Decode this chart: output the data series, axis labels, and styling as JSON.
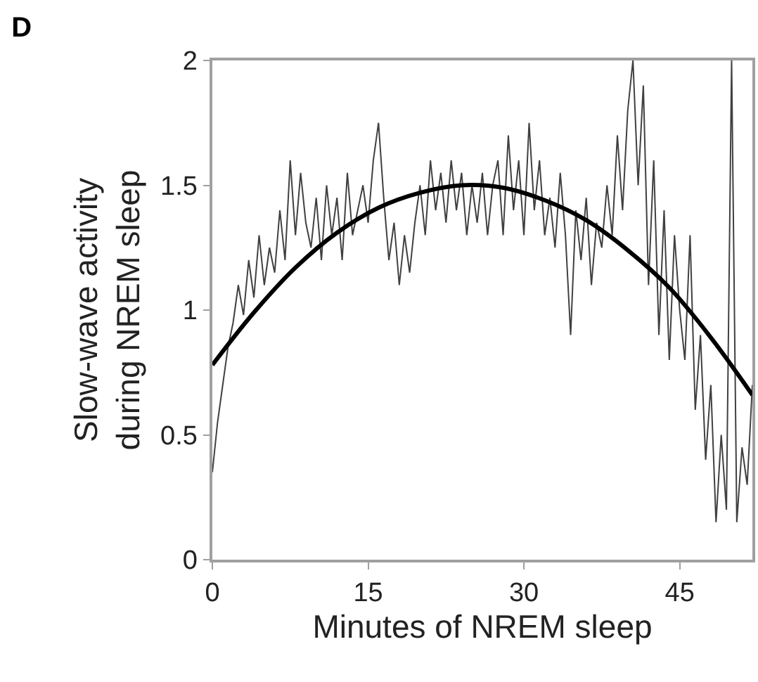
{
  "chart_data": {
    "type": "line",
    "title": "D",
    "xlabel": "Minutes of NREM sleep",
    "ylabel": "Slow-wave activity\nduring NREM sleep",
    "xlim": [
      0,
      52
    ],
    "xticks": [
      0,
      15,
      30,
      45
    ],
    "ylim": [
      0,
      2
    ],
    "yticks": [
      0,
      0.5,
      1,
      1.5,
      2
    ],
    "marker": "none",
    "series": [
      {
        "color": "#404040",
        "x": [
          0,
          0.5,
          1,
          1.5,
          2,
          2.5,
          3,
          3.5,
          4,
          4.5,
          5,
          5.5,
          6,
          6.5,
          7,
          7.5,
          8,
          8.5,
          9,
          9.5,
          10,
          10.5,
          11,
          11.5,
          12,
          12.5,
          13,
          13.5,
          14,
          14.5,
          15,
          15.5,
          16,
          16.5,
          17,
          17.5,
          18,
          18.5,
          19,
          19.5,
          20,
          20.5,
          21,
          21.5,
          22,
          22.5,
          23,
          23.5,
          24,
          24.5,
          25,
          25.5,
          26,
          26.5,
          27,
          27.5,
          28,
          28.5,
          29,
          29.5,
          30,
          30.5,
          31,
          31.5,
          32,
          32.5,
          33,
          33.5,
          34,
          34.5,
          35,
          35.5,
          36,
          36.5,
          37,
          37.5,
          38,
          38.5,
          39,
          39.5,
          40,
          40.5,
          41,
          41.5,
          42,
          42.5,
          43,
          43.5,
          44,
          44.5,
          45,
          45.5,
          46,
          46.5,
          47,
          47.5,
          48,
          48.5,
          49,
          49.5,
          50,
          50.5,
          51,
          51.5,
          52
        ],
        "values": [
          0.35,
          0.55,
          0.7,
          0.85,
          0.95,
          1.1,
          0.98,
          1.2,
          1.05,
          1.3,
          1.1,
          1.25,
          1.15,
          1.4,
          1.2,
          1.6,
          1.3,
          1.55,
          1.35,
          1.25,
          1.45,
          1.2,
          1.5,
          1.3,
          1.45,
          1.2,
          1.55,
          1.3,
          1.4,
          1.5,
          1.35,
          1.6,
          1.75,
          1.45,
          1.2,
          1.35,
          1.1,
          1.3,
          1.15,
          1.35,
          1.5,
          1.3,
          1.6,
          1.4,
          1.55,
          1.35,
          1.6,
          1.4,
          1.55,
          1.3,
          1.5,
          1.35,
          1.55,
          1.3,
          1.5,
          1.6,
          1.3,
          1.7,
          1.4,
          1.6,
          1.3,
          1.75,
          1.4,
          1.6,
          1.3,
          1.45,
          1.25,
          1.55,
          1.3,
          0.9,
          1.4,
          1.2,
          1.45,
          1.1,
          1.35,
          1.25,
          1.5,
          1.3,
          1.7,
          1.4,
          1.8,
          2.0,
          1.5,
          1.9,
          1.1,
          1.6,
          0.9,
          1.4,
          0.8,
          1.3,
          1.0,
          0.8,
          1.3,
          0.6,
          0.9,
          0.4,
          0.7,
          0.15,
          0.5,
          0.2,
          2.0,
          0.15,
          0.45,
          0.3,
          0.7
        ]
      },
      {
        "color": "#000000",
        "x": [
          0,
          4,
          8,
          12,
          16,
          20,
          24,
          28,
          32,
          36,
          40,
          44,
          48,
          52
        ],
        "values": [
          0.78,
          0.99,
          1.17,
          1.31,
          1.41,
          1.47,
          1.5,
          1.49,
          1.44,
          1.36,
          1.24,
          1.09,
          0.89,
          0.66
        ]
      }
    ]
  }
}
